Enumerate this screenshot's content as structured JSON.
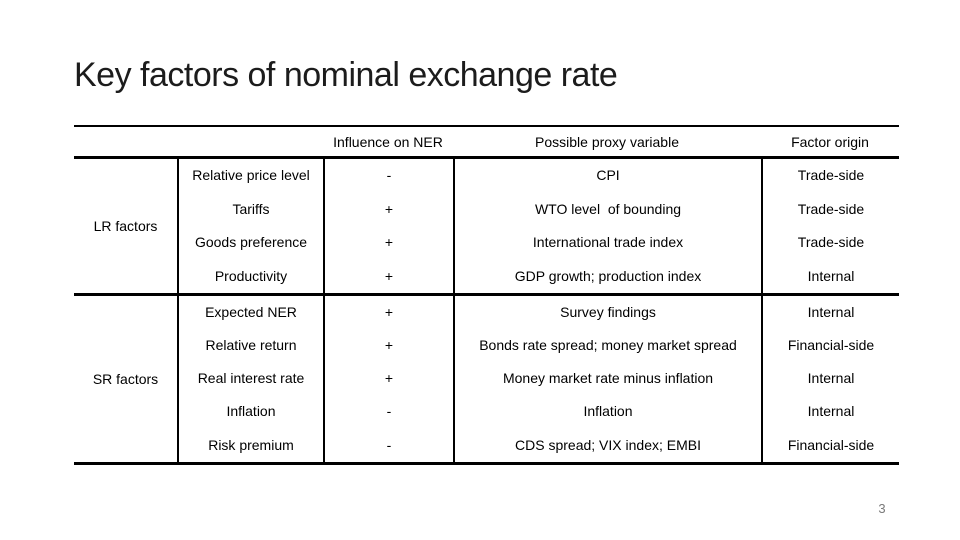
{
  "slide": {
    "title": "Key factors of nominal exchange rate",
    "page_number": "3"
  },
  "table": {
    "columns": {
      "influence": "Influence on NER",
      "proxy": "Possible proxy variable",
      "origin": "Factor origin"
    },
    "groups": [
      {
        "label": "LR factors",
        "rows": [
          {
            "factor": "Relative price level",
            "influence": "-",
            "proxy": "CPI",
            "origin": "Trade-side"
          },
          {
            "factor": "Tariffs",
            "influence": "+",
            "proxy": "WTO level  of bounding",
            "origin": "Trade-side"
          },
          {
            "factor": "Goods preference",
            "influence": "+",
            "proxy": "International trade index",
            "origin": "Trade-side"
          },
          {
            "factor": "Productivity",
            "influence": "+",
            "proxy": "GDP growth; production index",
            "origin": "Internal"
          }
        ]
      },
      {
        "label": "SR factors",
        "rows": [
          {
            "factor": "Expected NER",
            "influence": "+",
            "proxy": "Survey findings",
            "origin": "Internal"
          },
          {
            "factor": "Relative return",
            "influence": "+",
            "proxy": "Bonds rate spread; money market spread",
            "origin": "Financial-side"
          },
          {
            "factor": "Real interest rate",
            "influence": "+",
            "proxy": "Money market rate minus inflation",
            "origin": "Internal"
          },
          {
            "factor": "Inflation",
            "influence": "-",
            "proxy": "Inflation",
            "origin": "Internal"
          },
          {
            "factor": "Risk premium",
            "influence": "-",
            "proxy": "CDS spread; VIX index; EMBI",
            "origin": "Financial-side"
          }
        ]
      }
    ]
  }
}
